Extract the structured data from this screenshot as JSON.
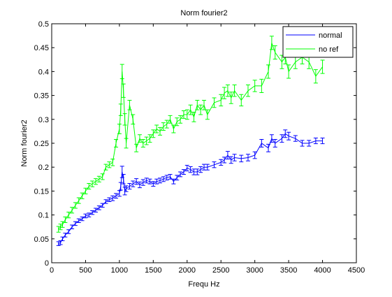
{
  "chart_data": {
    "type": "line",
    "title": "Norm fourier2",
    "xlabel": "Frequ Hz",
    "ylabel": "Norm fourier2",
    "xlim": [
      0,
      4500
    ],
    "ylim": [
      0,
      0.5
    ],
    "xticks": [
      0,
      500,
      1000,
      1500,
      2000,
      2500,
      3000,
      3500,
      4000,
      4500
    ],
    "xtick_labels": [
      "0",
      "500",
      "1000",
      "1500",
      "2000",
      "2500",
      "3000",
      "3500",
      "4000",
      "4500"
    ],
    "yticks": [
      0,
      0.05,
      0.1,
      0.15,
      0.2,
      0.25,
      0.3,
      0.35,
      0.4,
      0.45,
      0.5
    ],
    "ytick_labels": [
      "0",
      "0.05",
      "0.1",
      "0.15",
      "0.2",
      "0.25",
      "0.3",
      "0.35",
      "0.4",
      "0.45",
      "0.5"
    ],
    "grid": false,
    "legend_position": "top-right",
    "error_bars": true,
    "series": [
      {
        "name": "normal",
        "color": "#0000ff",
        "x": [
          100,
          130,
          160,
          200,
          250,
          300,
          350,
          400,
          450,
          500,
          550,
          600,
          650,
          700,
          750,
          800,
          850,
          900,
          950,
          1000,
          1020,
          1040,
          1060,
          1080,
          1100,
          1150,
          1200,
          1250,
          1300,
          1350,
          1400,
          1450,
          1500,
          1550,
          1600,
          1650,
          1700,
          1750,
          1800,
          1850,
          1900,
          1950,
          2000,
          2050,
          2100,
          2150,
          2200,
          2250,
          2300,
          2400,
          2500,
          2550,
          2600,
          2650,
          2700,
          2800,
          2900,
          3000,
          3100,
          3200,
          3250,
          3300,
          3400,
          3450,
          3500,
          3600,
          3700,
          3800,
          3900,
          4000
        ],
        "y": [
          0.04,
          0.042,
          0.05,
          0.058,
          0.065,
          0.075,
          0.082,
          0.088,
          0.092,
          0.098,
          0.1,
          0.105,
          0.11,
          0.115,
          0.12,
          0.128,
          0.132,
          0.135,
          0.14,
          0.145,
          0.16,
          0.19,
          0.175,
          0.15,
          0.155,
          0.16,
          0.165,
          0.17,
          0.163,
          0.168,
          0.172,
          0.17,
          0.165,
          0.17,
          0.172,
          0.175,
          0.178,
          0.18,
          0.17,
          0.178,
          0.185,
          0.19,
          0.198,
          0.195,
          0.19,
          0.19,
          0.195,
          0.2,
          0.2,
          0.205,
          0.21,
          0.215,
          0.225,
          0.215,
          0.22,
          0.218,
          0.22,
          0.225,
          0.25,
          0.24,
          0.26,
          0.25,
          0.26,
          0.27,
          0.265,
          0.26,
          0.25,
          0.25,
          0.255,
          0.255
        ],
        "err": [
          0.004,
          0.004,
          0.004,
          0.004,
          0.004,
          0.004,
          0.004,
          0.004,
          0.004,
          0.004,
          0.004,
          0.004,
          0.004,
          0.004,
          0.004,
          0.004,
          0.004,
          0.005,
          0.005,
          0.006,
          0.008,
          0.012,
          0.01,
          0.008,
          0.006,
          0.006,
          0.006,
          0.006,
          0.006,
          0.006,
          0.005,
          0.005,
          0.005,
          0.005,
          0.005,
          0.005,
          0.005,
          0.005,
          0.005,
          0.005,
          0.005,
          0.005,
          0.006,
          0.006,
          0.006,
          0.006,
          0.006,
          0.006,
          0.006,
          0.006,
          0.006,
          0.006,
          0.008,
          0.007,
          0.007,
          0.007,
          0.007,
          0.007,
          0.008,
          0.008,
          0.008,
          0.008,
          0.008,
          0.008,
          0.008,
          0.006,
          0.006,
          0.006,
          0.006,
          0.006
        ]
      },
      {
        "name": "no ref",
        "color": "#00ff00",
        "x": [
          100,
          130,
          160,
          200,
          250,
          300,
          350,
          400,
          450,
          500,
          550,
          600,
          650,
          700,
          750,
          800,
          850,
          900,
          950,
          1000,
          1020,
          1040,
          1060,
          1080,
          1100,
          1150,
          1200,
          1250,
          1300,
          1350,
          1400,
          1450,
          1500,
          1550,
          1600,
          1650,
          1700,
          1750,
          1800,
          1850,
          1900,
          1950,
          2000,
          2050,
          2100,
          2150,
          2200,
          2250,
          2300,
          2400,
          2500,
          2550,
          2600,
          2650,
          2700,
          2800,
          2900,
          3000,
          3100,
          3200,
          3250,
          3300,
          3400,
          3450,
          3500,
          3600,
          3700,
          3800,
          3900,
          4000
        ],
        "y": [
          0.07,
          0.075,
          0.08,
          0.09,
          0.1,
          0.11,
          0.12,
          0.13,
          0.14,
          0.15,
          0.16,
          0.165,
          0.17,
          0.175,
          0.18,
          0.2,
          0.205,
          0.21,
          0.25,
          0.28,
          0.32,
          0.4,
          0.36,
          0.3,
          0.25,
          0.33,
          0.3,
          0.24,
          0.26,
          0.25,
          0.255,
          0.26,
          0.27,
          0.28,
          0.275,
          0.285,
          0.29,
          0.3,
          0.28,
          0.295,
          0.3,
          0.31,
          0.31,
          0.32,
          0.305,
          0.33,
          0.32,
          0.33,
          0.31,
          0.335,
          0.34,
          0.355,
          0.36,
          0.345,
          0.36,
          0.34,
          0.36,
          0.37,
          0.37,
          0.4,
          0.46,
          0.44,
          0.42,
          0.43,
          0.4,
          0.42,
          0.43,
          0.42,
          0.39,
          0.41
        ],
        "err": [
          0.006,
          0.006,
          0.006,
          0.006,
          0.006,
          0.006,
          0.006,
          0.006,
          0.006,
          0.006,
          0.006,
          0.006,
          0.006,
          0.006,
          0.006,
          0.006,
          0.006,
          0.007,
          0.008,
          0.01,
          0.012,
          0.015,
          0.014,
          0.012,
          0.01,
          0.01,
          0.01,
          0.008,
          0.008,
          0.008,
          0.008,
          0.008,
          0.008,
          0.008,
          0.008,
          0.008,
          0.008,
          0.008,
          0.008,
          0.008,
          0.008,
          0.008,
          0.01,
          0.01,
          0.01,
          0.01,
          0.01,
          0.01,
          0.01,
          0.01,
          0.012,
          0.012,
          0.012,
          0.012,
          0.012,
          0.012,
          0.012,
          0.012,
          0.014,
          0.014,
          0.014,
          0.014,
          0.014,
          0.014,
          0.014,
          0.014,
          0.014,
          0.014,
          0.014,
          0.014
        ]
      }
    ]
  }
}
